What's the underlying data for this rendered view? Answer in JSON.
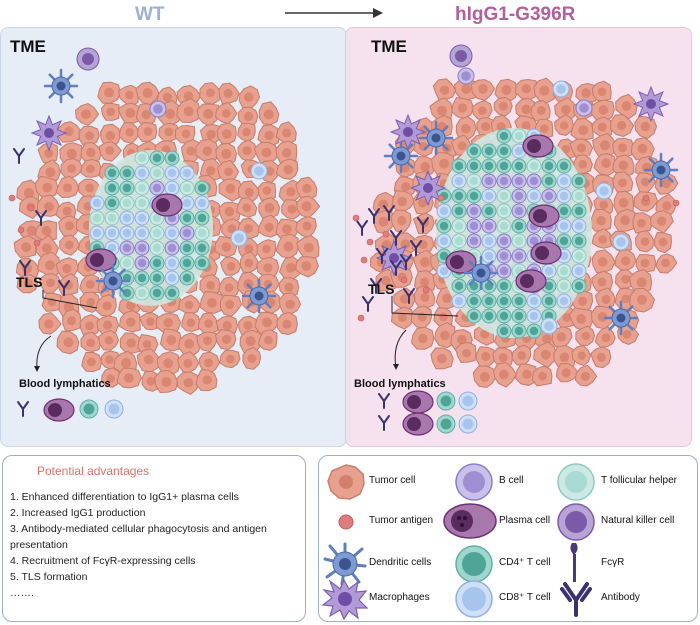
{
  "header": {
    "left_title": "WT",
    "right_title": "hIgG1-G396R"
  },
  "panels": {
    "wt": {
      "tme_label": "TME",
      "tls_label": "TLS",
      "lymph_label": "Blood lymphatics"
    },
    "g396r": {
      "tme_label": "TME",
      "tls_label": "TLS",
      "lymph_label": "Blood lymphatics"
    }
  },
  "advantages": {
    "title": "Potential advantages",
    "items": [
      "1. Enhanced differentiation to IgG1+ plasma cells",
      "2. Increased IgG1 production",
      "3. Antibody-mediated cellular phagocytosis and antigen presentation",
      "4. Recruitment of FcγR-expressing cells",
      "5. TLS formation",
      "……."
    ]
  },
  "legend": {
    "tumor_cell": "Tumor cell",
    "b_cell": "B cell",
    "tfh": "T follicular helper",
    "tumor_antigen": "Tumor antigen",
    "plasma_cell": "Plasma cell",
    "nk_cell": "Natural killer cell",
    "dendritic": "Dendritic cells",
    "cd4": "CD4⁺ T cell",
    "fcgr": "FcγR",
    "macrophage": "Macrophages",
    "cd8": "CD8⁺ T cell",
    "antibody": "Antibody"
  },
  "colors": {
    "tumor": "#e8a18f",
    "cd4": "#7fc8bd",
    "b_cell": "#9d8fd2",
    "plasma": "#7a3f7f",
    "cd8": "#a7c4ec",
    "dendritic": "#5f7fc1",
    "macrophage": "#8f6fc0",
    "nk": "#7b5aa7",
    "antigen": "#e07c7c",
    "antibody": "#3a3270"
  }
}
